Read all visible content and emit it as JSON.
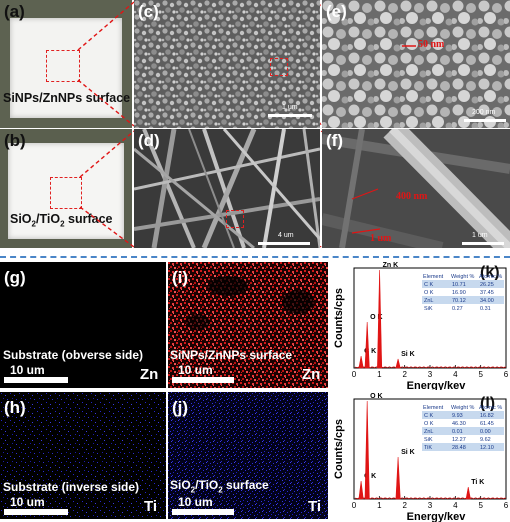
{
  "panels": {
    "a": {
      "label": "(a)",
      "caption": "SiNPs/ZnNPs surface"
    },
    "b": {
      "label": "(b)",
      "caption_prefix": "SiO",
      "caption_sub1": "2",
      "caption_mid": "/TiO",
      "caption_sub2": "2",
      "caption_suffix": " surface"
    },
    "c": {
      "label": "(c)",
      "scale": "1 um"
    },
    "d": {
      "label": "(d)",
      "scale": "4 um"
    },
    "e": {
      "label": "(e)",
      "scale": "200 nm",
      "annotation": "50 nm"
    },
    "f": {
      "label": "(f)",
      "scale": "1 um",
      "annotation1": "400 nm",
      "annotation2": "1 um"
    },
    "g": {
      "label": "(g)",
      "caption": "Substrate (obverse side)",
      "scale": "10 um",
      "element": "Zn"
    },
    "h": {
      "label": "(h)",
      "caption": "Substrate (inverse side)",
      "scale": "10 um",
      "element": "Ti"
    },
    "i": {
      "label": "(i)",
      "caption": "SiNPs/ZnNPs surface",
      "scale": "10 um",
      "element": "Zn"
    },
    "j": {
      "label": "(j)",
      "caption_prefix": "SiO",
      "caption_sub1": "2",
      "caption_mid": "/TiO",
      "caption_sub2": "2",
      "caption_suffix": " surface",
      "scale": "10 um",
      "element": "Ti"
    },
    "k": {
      "label": "(k)"
    },
    "l": {
      "label": "(l)"
    }
  },
  "colors": {
    "accent_red": "#e01515",
    "map_red": "#d01818",
    "map_blue": "#2424c8",
    "divider": "#4a86c8",
    "table_row": "#c7d9ee"
  },
  "chart_data": [
    {
      "type": "bar",
      "panel": "k",
      "xlabel": "Energy/kev",
      "ylabel": "Counts/cps",
      "xlim": [
        0,
        6
      ],
      "xticks": [
        "0",
        "1",
        "2",
        "3",
        "4",
        "5",
        "6"
      ],
      "peaks": [
        {
          "label": "C K",
          "x": 0.28,
          "y": 0.12
        },
        {
          "label": "O K",
          "x": 0.52,
          "y": 0.46
        },
        {
          "label": "Zn K",
          "x": 1.01,
          "y": 0.98
        },
        {
          "label": "Si K",
          "x": 1.74,
          "y": 0.09
        }
      ],
      "table": {
        "columns": [
          "Element",
          "Weight %",
          "Atomic %"
        ],
        "rows": [
          [
            "C K",
            "10.71",
            "26.25"
          ],
          [
            "O K",
            "16.90",
            "37.45"
          ],
          [
            "ZnL",
            "70.12",
            "34.00"
          ],
          [
            "SiK",
            "0.27",
            "0.31"
          ]
        ]
      }
    },
    {
      "type": "bar",
      "panel": "l",
      "xlabel": "Energy/kev",
      "ylabel": "Counts/cps",
      "xlim": [
        0,
        6
      ],
      "xticks": [
        "0",
        "1",
        "2",
        "3",
        "4",
        "5",
        "6"
      ],
      "peaks": [
        {
          "label": "C K",
          "x": 0.28,
          "y": 0.18
        },
        {
          "label": "O K",
          "x": 0.52,
          "y": 0.98
        },
        {
          "label": "Si K",
          "x": 1.74,
          "y": 0.42
        },
        {
          "label": "Ti K",
          "x": 4.51,
          "y": 0.12
        }
      ],
      "table": {
        "columns": [
          "Element",
          "Weight %",
          "Atomic %"
        ],
        "rows": [
          [
            "C K",
            "9.93",
            "16.82"
          ],
          [
            "O K",
            "46.30",
            "61.45"
          ],
          [
            "ZnL",
            "0.01",
            "0.00"
          ],
          [
            "SiK",
            "12.27",
            "9.62"
          ],
          [
            "TiK",
            "28.48",
            "12.10"
          ]
        ]
      }
    }
  ]
}
